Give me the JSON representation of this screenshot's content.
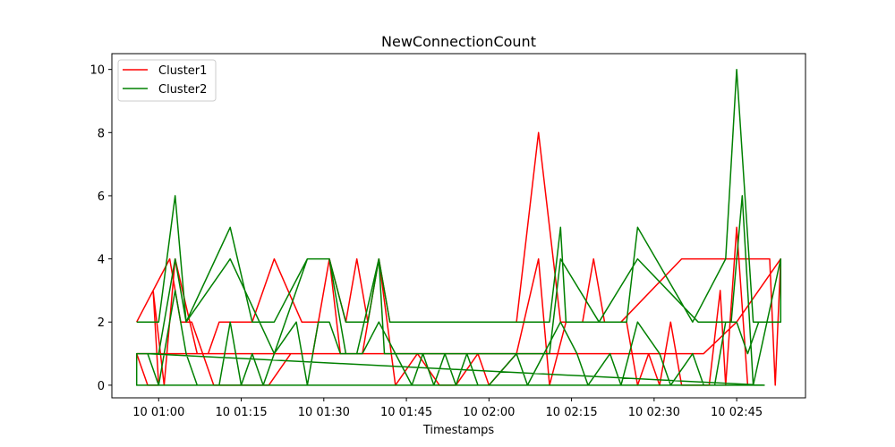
{
  "chart_data": {
    "type": "line",
    "title": "NewConnectionCount",
    "xlabel": "Timestamps",
    "ylabel": "",
    "xlim": [
      "00:51:30",
      "02:57:30"
    ],
    "ylim": [
      -0.4,
      10.5
    ],
    "x_ticks": [
      "10 01:00",
      "10 01:15",
      "10 01:30",
      "10 01:45",
      "10 02:00",
      "10 02:15",
      "10 02:30",
      "10 02:45"
    ],
    "y_ticks": [
      "0",
      "2",
      "4",
      "6",
      "8",
      "10"
    ],
    "legend": "top-left",
    "grid": false,
    "series": [
      {
        "name": "Cluster1",
        "color": "#ff0000",
        "points": [
          [
            "00:56",
            2
          ],
          [
            "01:02",
            4
          ],
          [
            "01:04",
            2
          ],
          [
            "01:06",
            2
          ],
          [
            "01:10",
            0
          ],
          [
            "01:12",
            0
          ],
          [
            "01:16",
            0
          ],
          [
            "01:20",
            0
          ],
          [
            "01:24",
            1
          ],
          [
            "01:28",
            1
          ],
          [
            "01:31",
            4
          ],
          [
            "01:34",
            2
          ],
          [
            "01:36",
            4
          ],
          [
            "01:38",
            2
          ],
          [
            "01:40",
            4
          ],
          [
            "01:42",
            2
          ],
          [
            "01:46",
            2
          ],
          [
            "01:58",
            2
          ],
          [
            "02:05",
            2
          ],
          [
            "02:09",
            8
          ],
          [
            "02:13",
            2
          ],
          [
            "02:18",
            2
          ],
          [
            "02:24",
            2
          ],
          [
            "02:35",
            4
          ],
          [
            "02:42",
            4
          ],
          [
            "02:46",
            4
          ],
          [
            "02:51",
            4
          ],
          [
            "02:52",
            0
          ],
          [
            "02:53",
            4
          ],
          [
            "02:45",
            2
          ],
          [
            "02:39",
            1
          ],
          [
            "02:30",
            1
          ],
          [
            "02:25",
            1
          ],
          [
            "02:20",
            1
          ],
          [
            "02:16",
            1
          ],
          [
            "02:12",
            1
          ],
          [
            "02:08",
            1
          ],
          [
            "02:04",
            1
          ],
          [
            "02:00",
            1
          ],
          [
            "01:56",
            1
          ],
          [
            "01:52",
            1
          ],
          [
            "01:48",
            1
          ],
          [
            "01:44",
            1
          ],
          [
            "01:40",
            1
          ],
          [
            "01:36",
            1
          ],
          [
            "01:32",
            1
          ],
          [
            "01:28",
            1
          ],
          [
            "01:24",
            1
          ],
          [
            "01:20",
            1
          ],
          [
            "01:16",
            1
          ],
          [
            "01:12",
            1
          ],
          [
            "01:08",
            1
          ],
          [
            "01:04",
            1
          ],
          [
            "01:00",
            1
          ],
          [
            "00:56",
            1
          ],
          [
            "00:58",
            0
          ],
          [
            "01:00",
            0
          ],
          [
            "00:59",
            3
          ],
          [
            "01:01",
            0
          ],
          [
            "01:03",
            4
          ],
          [
            "01:07",
            1
          ],
          [
            "01:09",
            1
          ],
          [
            "01:11",
            2
          ],
          [
            "01:13",
            2
          ],
          [
            "01:15",
            2
          ],
          [
            "01:17",
            2
          ],
          [
            "01:21",
            4
          ],
          [
            "01:26",
            2
          ],
          [
            "01:29",
            2
          ],
          [
            "01:31",
            4
          ],
          [
            "01:33",
            1
          ],
          [
            "01:35",
            1
          ],
          [
            "01:37",
            1
          ],
          [
            "01:40",
            4
          ],
          [
            "01:43",
            0
          ],
          [
            "01:47",
            1
          ],
          [
            "01:51",
            0
          ],
          [
            "01:54",
            0
          ],
          [
            "01:58",
            1
          ],
          [
            "02:00",
            0
          ],
          [
            "02:05",
            1
          ],
          [
            "02:09",
            4
          ],
          [
            "02:11",
            0
          ],
          [
            "02:14",
            2
          ],
          [
            "02:17",
            2
          ],
          [
            "02:19",
            4
          ],
          [
            "02:21",
            2
          ],
          [
            "02:25",
            2
          ],
          [
            "02:27",
            0
          ],
          [
            "02:29",
            1
          ],
          [
            "02:31",
            0
          ],
          [
            "02:33",
            2
          ],
          [
            "02:35",
            0
          ],
          [
            "02:38",
            0
          ],
          [
            "02:40",
            0
          ],
          [
            "02:42",
            3
          ],
          [
            "02:43",
            0
          ],
          [
            "02:45",
            5
          ],
          [
            "02:47",
            0
          ]
        ]
      },
      {
        "name": "Cluster2",
        "color": "#008000",
        "points": [
          [
            "00:56",
            2
          ],
          [
            "01:00",
            2
          ],
          [
            "01:03",
            6
          ],
          [
            "01:05",
            2
          ],
          [
            "01:13",
            5
          ],
          [
            "01:17",
            2
          ],
          [
            "01:21",
            2
          ],
          [
            "01:27",
            4
          ],
          [
            "01:31",
            4
          ],
          [
            "01:34",
            2
          ],
          [
            "01:36",
            2
          ],
          [
            "01:38",
            2
          ],
          [
            "01:40",
            4
          ],
          [
            "01:42",
            2
          ],
          [
            "01:46",
            2
          ],
          [
            "01:51",
            2
          ],
          [
            "01:55",
            2
          ],
          [
            "02:00",
            2
          ],
          [
            "02:11",
            2
          ],
          [
            "02:13",
            5
          ],
          [
            "02:14",
            2
          ],
          [
            "02:18",
            2
          ],
          [
            "02:25",
            2
          ],
          [
            "02:27",
            5
          ],
          [
            "02:37",
            2
          ],
          [
            "02:43",
            4
          ],
          [
            "02:45",
            10
          ],
          [
            "02:48",
            2
          ],
          [
            "02:53",
            2
          ],
          [
            "02:53",
            4
          ],
          [
            "02:48",
            0
          ],
          [
            "02:46",
            6
          ],
          [
            "02:44",
            2
          ],
          [
            "02:38",
            2
          ],
          [
            "02:27",
            4
          ],
          [
            "02:20",
            2
          ],
          [
            "02:13",
            4
          ],
          [
            "02:11",
            1
          ],
          [
            "02:05",
            1
          ],
          [
            "02:00",
            1
          ],
          [
            "01:55",
            1
          ],
          [
            "01:50",
            1
          ],
          [
            "01:45",
            1
          ],
          [
            "01:41",
            1
          ],
          [
            "01:40",
            4
          ],
          [
            "01:36",
            1
          ],
          [
            "01:34",
            1
          ],
          [
            "01:31",
            4
          ],
          [
            "01:27",
            4
          ],
          [
            "01:21",
            1
          ],
          [
            "01:13",
            4
          ],
          [
            "01:05",
            2
          ],
          [
            "01:03",
            4
          ],
          [
            "01:00",
            1
          ],
          [
            "00:56",
            1
          ],
          [
            "00:56",
            0
          ],
          [
            "01:05",
            0
          ],
          [
            "01:44",
            0
          ],
          [
            "02:00",
            0
          ],
          [
            "02:50",
            0
          ],
          [
            "00:58",
            1
          ],
          [
            "01:00",
            0
          ],
          [
            "01:03",
            3
          ],
          [
            "01:05",
            1
          ],
          [
            "01:07",
            0
          ],
          [
            "01:11",
            0
          ],
          [
            "01:13",
            2
          ],
          [
            "01:15",
            0
          ],
          [
            "01:17",
            1
          ],
          [
            "01:19",
            0
          ],
          [
            "01:21",
            1
          ],
          [
            "01:25",
            2
          ],
          [
            "01:27",
            0
          ],
          [
            "01:29",
            2
          ],
          [
            "01:31",
            2
          ],
          [
            "01:33",
            1
          ],
          [
            "01:37",
            1
          ],
          [
            "01:40",
            2
          ],
          [
            "01:43",
            1
          ],
          [
            "01:46",
            0
          ],
          [
            "01:48",
            1
          ],
          [
            "01:50",
            0
          ],
          [
            "01:52",
            1
          ],
          [
            "01:54",
            0
          ],
          [
            "01:56",
            1
          ],
          [
            "01:58",
            0
          ],
          [
            "02:00",
            0
          ],
          [
            "02:05",
            1
          ],
          [
            "02:07",
            0
          ],
          [
            "02:10",
            1
          ],
          [
            "02:13",
            2
          ],
          [
            "02:16",
            1
          ],
          [
            "02:18",
            0
          ],
          [
            "02:22",
            1
          ],
          [
            "02:24",
            0
          ],
          [
            "02:27",
            2
          ],
          [
            "02:31",
            1
          ],
          [
            "02:33",
            0
          ],
          [
            "02:37",
            1
          ],
          [
            "02:39",
            0
          ],
          [
            "02:41",
            0
          ],
          [
            "02:43",
            2
          ],
          [
            "02:45",
            2
          ],
          [
            "02:47",
            1
          ],
          [
            "02:49",
            2
          ],
          [
            "02:53",
            2
          ]
        ]
      }
    ]
  }
}
